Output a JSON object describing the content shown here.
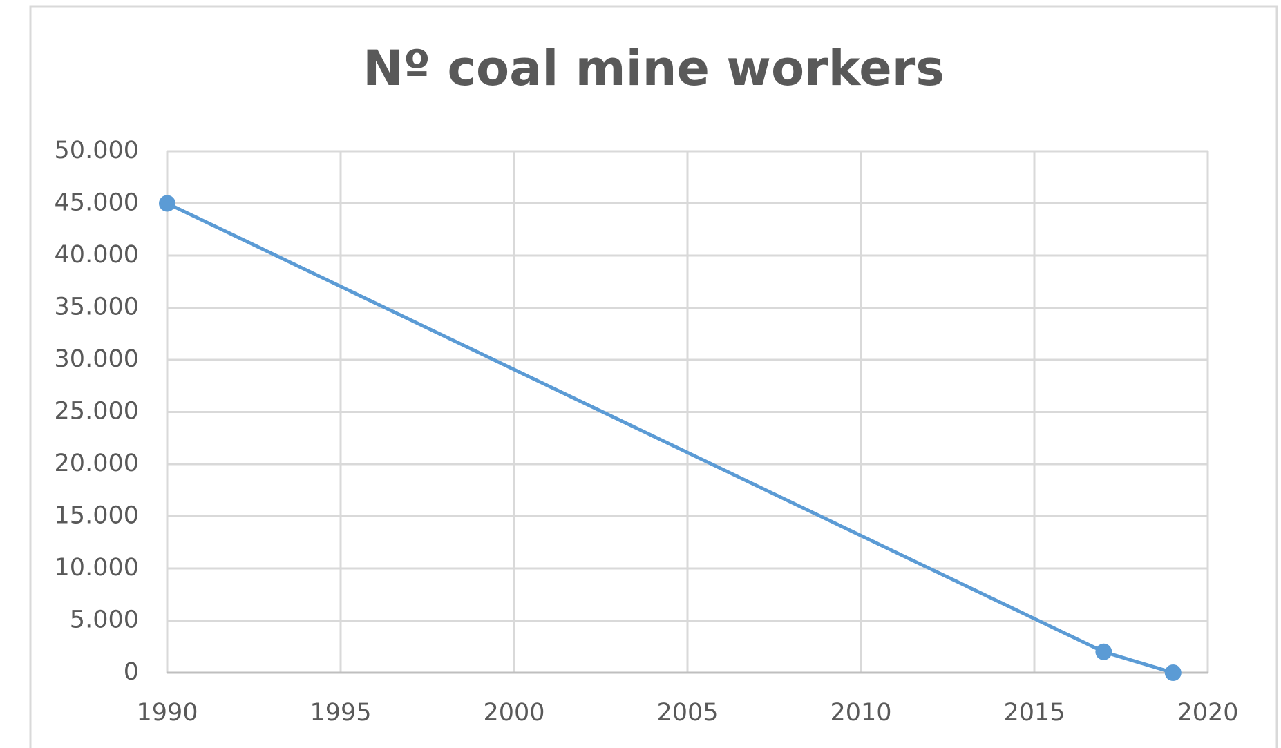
{
  "chart_data": {
    "type": "line",
    "title": "Nº coal mine workers",
    "series": [
      {
        "name": null,
        "color": "#5b9bd5",
        "x": [
          1990,
          2017,
          2019
        ],
        "values": [
          45000,
          2000,
          0
        ]
      }
    ],
    "xlim": [
      1990,
      2020
    ],
    "xticks": [
      1990,
      1995,
      2000,
      2005,
      2010,
      2015,
      2020
    ],
    "ylim": [
      0,
      50000
    ],
    "yticks": [
      0,
      {
        "value": 5000,
        "label": "5.000"
      },
      {
        "value": 10000,
        "label": "10.000"
      },
      {
        "value": 15000,
        "label": "15.000"
      },
      {
        "value": 20000,
        "label": "20.000"
      },
      {
        "value": 25000,
        "label": "25.000"
      },
      {
        "value": 30000,
        "label": "30.000"
      },
      {
        "value": 35000,
        "label": "35.000"
      },
      {
        "value": 40000,
        "label": "40.000"
      },
      {
        "value": 45000,
        "label": "45.000"
      },
      {
        "value": 50000,
        "label": "50.000"
      }
    ],
    "grid": true
  }
}
